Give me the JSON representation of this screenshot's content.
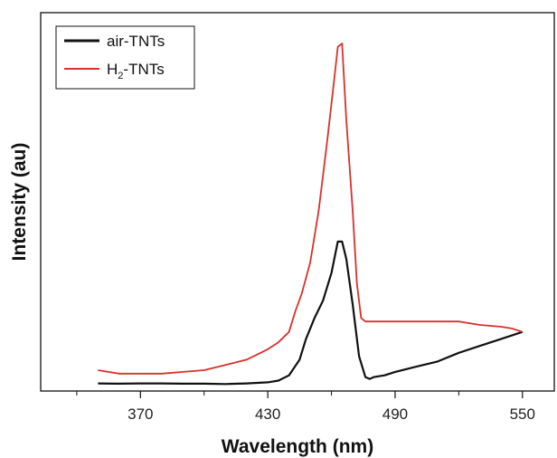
{
  "chart_data": {
    "type": "line",
    "xlabel": "Wavelength (nm)",
    "ylabel": "Intensity (au)",
    "xlim": [
      323,
      565
    ],
    "ylim": [
      0,
      1
    ],
    "xticks": [
      370,
      430,
      490,
      550
    ],
    "xticks_minor": [
      340,
      400,
      460,
      520
    ],
    "y_ticks_shown": false,
    "grid": false,
    "legend_position": "top-left",
    "series": [
      {
        "name": "air-TNTs",
        "name_parts": [
          "air-TNTs"
        ],
        "color": "#111111",
        "x": [
          350,
          360,
          370,
          380,
          390,
          400,
          410,
          420,
          430,
          435,
          440,
          445,
          448,
          452,
          456,
          460,
          463,
          465,
          467,
          470,
          473,
          476,
          478,
          480,
          485,
          490,
          500,
          510,
          520,
          530,
          540,
          545,
          550
        ],
        "y": [
          0.022,
          0.021,
          0.022,
          0.022,
          0.021,
          0.021,
          0.02,
          0.022,
          0.025,
          0.03,
          0.045,
          0.09,
          0.15,
          0.21,
          0.26,
          0.34,
          0.43,
          0.43,
          0.38,
          0.25,
          0.1,
          0.04,
          0.035,
          0.04,
          0.045,
          0.055,
          0.07,
          0.085,
          0.11,
          0.13,
          0.15,
          0.16,
          0.17
        ]
      },
      {
        "name": "H2-TNTs",
        "name_parts": [
          "H",
          "2",
          "-TNTs"
        ],
        "color": "#d9302c",
        "x": [
          350,
          360,
          370,
          380,
          390,
          400,
          410,
          420,
          430,
          435,
          440,
          443,
          446,
          450,
          454,
          458,
          461,
          463,
          465,
          467,
          470,
          472,
          474,
          476,
          480,
          490,
          500,
          510,
          520,
          530,
          540,
          545,
          550
        ],
        "y": [
          0.06,
          0.05,
          0.05,
          0.05,
          0.055,
          0.06,
          0.075,
          0.09,
          0.12,
          0.14,
          0.17,
          0.23,
          0.28,
          0.37,
          0.52,
          0.72,
          0.88,
          0.99,
          1.0,
          0.78,
          0.52,
          0.31,
          0.21,
          0.2,
          0.2,
          0.2,
          0.2,
          0.2,
          0.2,
          0.19,
          0.185,
          0.18,
          0.17
        ]
      }
    ]
  }
}
